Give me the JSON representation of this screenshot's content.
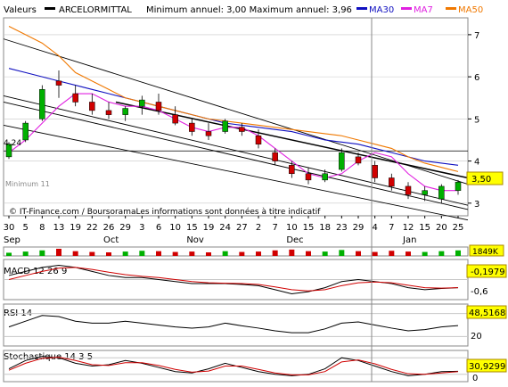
{
  "header": {
    "valeurs": "Valeurs",
    "name": "ARCELORMITTAL",
    "minmax": "Minimum annuel: 3,00 Maximum annuel: 3,96",
    "legend": [
      {
        "label": "MA30",
        "color": "#1010c0"
      },
      {
        "label": "MA7",
        "color": "#e020e0"
      },
      {
        "label": "MA50",
        "color": "#f07800"
      }
    ]
  },
  "price_panel": {
    "annotation_left": "4,24",
    "annotation_min": "Minimum 11",
    "last_price_label": "3,50",
    "source_text": "© IT-Finance.com / BoursoramaLes informations sont données à titre indicatif"
  },
  "xaxis": {
    "days": [
      "30",
      "5",
      "8",
      "13",
      "19",
      "22",
      "26",
      "29",
      "3",
      "6",
      "10",
      "15",
      "19",
      "24",
      "27",
      "2",
      "7",
      "10",
      "15",
      "18",
      "23",
      "29",
      "4",
      "7",
      "12",
      "15",
      "20",
      "25"
    ],
    "months": [
      "Sep",
      "Oct",
      "Nov",
      "Dec",
      "Jan"
    ]
  },
  "volume_panel": {
    "label": "1849K"
  },
  "macd_panel": {
    "title": "MACD 12 26 9",
    "value": "-0,1979",
    "tick": "-0,6"
  },
  "rsi_panel": {
    "title": "RSI 14",
    "value": "48,5168",
    "tick": "20"
  },
  "stoch_panel": {
    "title": "Stochastique 14 3 5",
    "value": "30,9299",
    "tick": "0"
  },
  "colors": {
    "up": "#00b000",
    "down": "#d00000",
    "ma30": "#1010c0",
    "ma7": "#e020e0",
    "ma50": "#f07800",
    "value_box": "#ffff00",
    "grid": "#c8c8c8"
  },
  "chart_data": {
    "type": "candlestick",
    "title": "ARCELORMITTAL",
    "y_ticks": [
      3,
      4,
      5,
      6,
      7
    ],
    "ylim": [
      2.7,
      7.4
    ],
    "series": [
      {
        "name": "MA30",
        "values": [
          6.2,
          6.1,
          6.0,
          5.9,
          5.8,
          5.7,
          5.6,
          5.5,
          5.4,
          5.3,
          5.2,
          5.1,
          5.0,
          4.9,
          4.85,
          4.8,
          4.75,
          4.7,
          4.6,
          4.5,
          4.45,
          4.4,
          4.3,
          4.2,
          4.1,
          4.0,
          3.95,
          3.9
        ]
      },
      {
        "name": "MA7",
        "values": [
          4.2,
          4.5,
          4.9,
          5.3,
          5.6,
          5.6,
          5.4,
          5.3,
          5.3,
          5.2,
          5.0,
          4.8,
          4.7,
          4.8,
          4.8,
          4.6,
          4.3,
          4.0,
          3.7,
          3.6,
          3.7,
          4.0,
          4.2,
          4.1,
          3.7,
          3.4,
          3.3,
          3.3
        ]
      },
      {
        "name": "MA50",
        "values": [
          7.2,
          7.0,
          6.8,
          6.5,
          6.1,
          5.9,
          5.7,
          5.5,
          5.4,
          5.3,
          5.2,
          5.1,
          5.0,
          4.95,
          4.9,
          4.85,
          4.8,
          4.75,
          4.7,
          4.65,
          4.6,
          4.5,
          4.4,
          4.3,
          4.1,
          3.95,
          3.85,
          3.75
        ]
      }
    ],
    "candles": [
      {
        "o": 4.1,
        "h": 4.45,
        "l": 4.05,
        "c": 4.4
      },
      {
        "o": 4.5,
        "h": 4.95,
        "l": 4.45,
        "c": 4.9
      },
      {
        "o": 5.0,
        "h": 5.8,
        "l": 4.95,
        "c": 5.7
      },
      {
        "o": 5.9,
        "h": 6.15,
        "l": 5.5,
        "c": 5.8
      },
      {
        "o": 5.6,
        "h": 5.8,
        "l": 5.3,
        "c": 5.4
      },
      {
        "o": 5.4,
        "h": 5.6,
        "l": 5.1,
        "c": 5.2
      },
      {
        "o": 5.2,
        "h": 5.4,
        "l": 5.0,
        "c": 5.1
      },
      {
        "o": 5.1,
        "h": 5.3,
        "l": 4.95,
        "c": 5.25
      },
      {
        "o": 5.3,
        "h": 5.55,
        "l": 5.1,
        "c": 5.45
      },
      {
        "o": 5.4,
        "h": 5.6,
        "l": 5.1,
        "c": 5.2
      },
      {
        "o": 5.1,
        "h": 5.3,
        "l": 4.85,
        "c": 4.9
      },
      {
        "o": 4.9,
        "h": 5.0,
        "l": 4.6,
        "c": 4.7
      },
      {
        "o": 4.7,
        "h": 4.9,
        "l": 4.5,
        "c": 4.6
      },
      {
        "o": 4.7,
        "h": 5.0,
        "l": 4.65,
        "c": 4.95
      },
      {
        "o": 4.8,
        "h": 4.9,
        "l": 4.6,
        "c": 4.7
      },
      {
        "o": 4.6,
        "h": 4.75,
        "l": 4.3,
        "c": 4.4
      },
      {
        "o": 4.2,
        "h": 4.3,
        "l": 3.9,
        "c": 4.0
      },
      {
        "o": 3.9,
        "h": 4.0,
        "l": 3.6,
        "c": 3.7
      },
      {
        "o": 3.7,
        "h": 3.85,
        "l": 3.45,
        "c": 3.55
      },
      {
        "o": 3.55,
        "h": 3.8,
        "l": 3.5,
        "c": 3.7
      },
      {
        "o": 3.8,
        "h": 4.3,
        "l": 3.75,
        "c": 4.2
      },
      {
        "o": 4.1,
        "h": 4.2,
        "l": 3.9,
        "c": 3.95
      },
      {
        "o": 3.9,
        "h": 4.0,
        "l": 3.5,
        "c": 3.6
      },
      {
        "o": 3.6,
        "h": 3.7,
        "l": 3.3,
        "c": 3.4
      },
      {
        "o": 3.4,
        "h": 3.5,
        "l": 3.1,
        "c": 3.2
      },
      {
        "o": 3.2,
        "h": 3.4,
        "l": 3.05,
        "c": 3.3
      },
      {
        "o": 3.1,
        "h": 3.45,
        "l": 3.0,
        "c": 3.4
      },
      {
        "o": 3.3,
        "h": 3.55,
        "l": 3.2,
        "c": 3.5
      }
    ],
    "volume": [
      40,
      55,
      70,
      90,
      60,
      50,
      45,
      55,
      65,
      60,
      50,
      55,
      45,
      60,
      50,
      55,
      70,
      80,
      60,
      55,
      75,
      60,
      50,
      65,
      55,
      50,
      60,
      70
    ],
    "macd": [
      0.1,
      0.2,
      0.3,
      0.35,
      0.3,
      0.2,
      0.1,
      0.05,
      0.05,
      0.0,
      -0.05,
      -0.1,
      -0.1,
      -0.1,
      -0.12,
      -0.15,
      -0.25,
      -0.35,
      -0.3,
      -0.2,
      -0.05,
      0.0,
      -0.05,
      -0.1,
      -0.2,
      -0.25,
      -0.22,
      -0.2
    ],
    "macd_signal": [
      0.0,
      0.1,
      0.2,
      0.28,
      0.3,
      0.25,
      0.18,
      0.12,
      0.08,
      0.05,
      0.0,
      -0.05,
      -0.08,
      -0.09,
      -0.1,
      -0.12,
      -0.18,
      -0.25,
      -0.28,
      -0.25,
      -0.15,
      -0.08,
      -0.06,
      -0.08,
      -0.14,
      -0.2,
      -0.21,
      -0.2
    ],
    "rsi": [
      45,
      60,
      75,
      72,
      60,
      55,
      55,
      60,
      55,
      50,
      45,
      42,
      45,
      55,
      48,
      42,
      35,
      30,
      30,
      40,
      55,
      58,
      50,
      42,
      35,
      38,
      45,
      48.5
    ],
    "stoch_k": [
      40,
      70,
      85,
      80,
      60,
      50,
      55,
      70,
      60,
      45,
      30,
      25,
      40,
      60,
      45,
      30,
      20,
      15,
      20,
      40,
      80,
      70,
      50,
      30,
      15,
      20,
      30,
      31
    ],
    "stoch_d": [
      35,
      60,
      78,
      82,
      70,
      55,
      52,
      62,
      62,
      52,
      38,
      28,
      32,
      50,
      50,
      38,
      25,
      18,
      18,
      30,
      65,
      72,
      58,
      38,
      22,
      20,
      25,
      30
    ]
  }
}
